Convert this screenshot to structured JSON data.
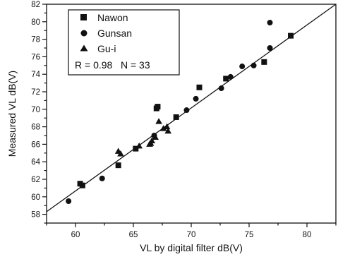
{
  "chart_data": {
    "type": "scatter",
    "xlabel": "VL by digital filter dB(V)",
    "ylabel": "Measured VL dB(V)",
    "xlim": [
      57.5,
      82.5
    ],
    "ylim": [
      57,
      82
    ],
    "xticks": [
      60,
      65,
      70,
      75,
      80
    ],
    "yticks": [
      58,
      60,
      62,
      64,
      66,
      68,
      70,
      72,
      74,
      76,
      78,
      80,
      82
    ],
    "grid": false,
    "legend": "top-left",
    "annotation": "R = 0.98   N = 33",
    "fit_line": {
      "points": [
        [
          57.5,
          58.3
        ],
        [
          82.5,
          82.0
        ]
      ]
    },
    "series": [
      {
        "name": "Nawon",
        "marker": "square",
        "points": [
          [
            60.4,
            61.5
          ],
          [
            60.6,
            61.3
          ],
          [
            63.7,
            63.6
          ],
          [
            65.2,
            65.5
          ],
          [
            67.0,
            70.1
          ],
          [
            67.1,
            70.3
          ],
          [
            68.7,
            69.1
          ],
          [
            70.7,
            72.5
          ],
          [
            73.0,
            73.5
          ],
          [
            76.3,
            75.4
          ],
          [
            78.6,
            78.4
          ]
        ]
      },
      {
        "name": "Gunsan",
        "marker": "circle",
        "points": [
          [
            59.4,
            59.5
          ],
          [
            62.3,
            62.1
          ],
          [
            66.8,
            67.0
          ],
          [
            69.6,
            69.9
          ],
          [
            70.4,
            71.2
          ],
          [
            72.6,
            72.4
          ],
          [
            73.4,
            73.7
          ],
          [
            74.4,
            74.9
          ],
          [
            75.4,
            75.0
          ],
          [
            76.8,
            77.0
          ],
          [
            76.8,
            79.9
          ]
        ]
      },
      {
        "name": "Gu-i",
        "marker": "triangle",
        "points": [
          [
            63.7,
            65.2
          ],
          [
            63.9,
            64.9
          ],
          [
            65.5,
            65.8
          ],
          [
            66.5,
            66.1
          ],
          [
            66.6,
            66.4
          ],
          [
            66.9,
            66.8
          ],
          [
            67.2,
            68.6
          ],
          [
            67.6,
            67.8
          ],
          [
            67.9,
            68.0
          ],
          [
            68.0,
            67.5
          ],
          [
            66.4,
            66.0
          ]
        ]
      }
    ]
  }
}
